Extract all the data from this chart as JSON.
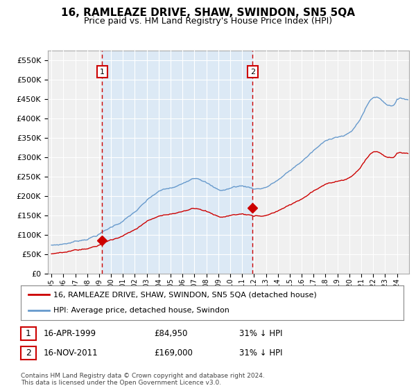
{
  "title": "16, RAMLEAZE DRIVE, SHAW, SWINDON, SN5 5QA",
  "subtitle": "Price paid vs. HM Land Registry's House Price Index (HPI)",
  "legend_label_red": "16, RAMLEAZE DRIVE, SHAW, SWINDON, SN5 5QA (detached house)",
  "legend_label_blue": "HPI: Average price, detached house, Swindon",
  "footer": "Contains HM Land Registry data © Crown copyright and database right 2024.\nThis data is licensed under the Open Government Licence v3.0.",
  "annotation1": {
    "num": "1",
    "date": "16-APR-1999",
    "price": "£84,950",
    "hpi": "31% ↓ HPI"
  },
  "annotation2": {
    "num": "2",
    "date": "16-NOV-2011",
    "price": "£169,000",
    "hpi": "31% ↓ HPI"
  },
  "sale1_year": 1999.25,
  "sale1_price": 84950,
  "sale2_year": 2011.875,
  "sale2_price": 169000,
  "hpi_at_sale1": 122000,
  "hpi_at_sale2": 243000,
  "ylim": [
    0,
    575000
  ],
  "yticks": [
    0,
    50000,
    100000,
    150000,
    200000,
    250000,
    300000,
    350000,
    400000,
    450000,
    500000,
    550000
  ],
  "color_red": "#cc0000",
  "color_blue": "#6699cc",
  "color_blue_fill": "#dce9f5",
  "color_vline": "#cc0000",
  "bg_plot": "#f0f0f0",
  "bg_fig": "#ffffff",
  "grid_color": "#ffffff",
  "title_fontsize": 11,
  "subtitle_fontsize": 9,
  "tick_fontsize": 8
}
